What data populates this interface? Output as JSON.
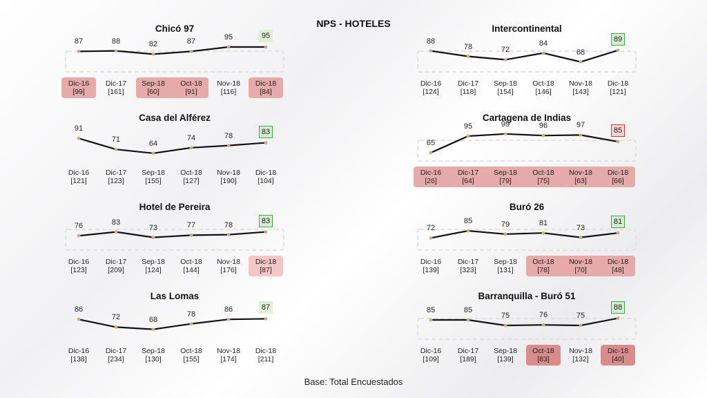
{
  "title": "NPS - HOTELES",
  "footer": "Base: Total Encuestados",
  "chart_data": [
    {
      "type": "line",
      "title": "Chicó 97",
      "categories": [
        "Dic-16",
        "Dic-17",
        "Sep-18",
        "Oct-18",
        "Nov-18",
        "Dic-18"
      ],
      "values": [
        87,
        88,
        82,
        87,
        95,
        95
      ],
      "bases": [
        "[99]",
        "[161]",
        "[60]",
        "[91]",
        "[116]",
        "[84]"
      ],
      "highlight": [
        "mid",
        "none",
        "mid",
        "mid",
        "none",
        "mid"
      ],
      "last_box": "lightgreen",
      "dashed_box": true
    },
    {
      "type": "line",
      "title": "Intercontinental",
      "categories": [
        "Dic-16",
        "Dic-17",
        "Sep-18",
        "Oct-18",
        "Nov-18",
        "Dic-18"
      ],
      "values": [
        88,
        78,
        72,
        84,
        68,
        89
      ],
      "bases": [
        "[124]",
        "[118]",
        "[154]",
        "[146]",
        "[143]",
        "[121]"
      ],
      "highlight": [
        "none",
        "none",
        "none",
        "none",
        "none",
        "none"
      ],
      "last_box": "green",
      "dashed_box": true
    },
    {
      "type": "line",
      "title": "Casa del Alférez",
      "categories": [
        "Dic-16",
        "Dic-17",
        "Sep-18",
        "Oct-18",
        "Nov-18",
        "Dic-18"
      ],
      "values": [
        91,
        71,
        64,
        74,
        78,
        83
      ],
      "bases": [
        "[121]",
        "[123]",
        "[155]",
        "[127]",
        "[190]",
        "[104]"
      ],
      "highlight": [
        "none",
        "none",
        "none",
        "none",
        "none",
        "none"
      ],
      "last_box": "green",
      "dashed_box": false
    },
    {
      "type": "line",
      "title": "Cartagena de Indias",
      "categories": [
        "Dic-16",
        "Dic-17",
        "Sep-18",
        "Oct-18",
        "Nov-18",
        "Dic-18"
      ],
      "values": [
        65,
        95,
        99,
        96,
        97,
        85
      ],
      "bases": [
        "[26]",
        "[64]",
        "[79]",
        "[75]",
        "[63]",
        "[66]"
      ],
      "highlight": [
        "mid",
        "mid",
        "mid",
        "mid",
        "mid",
        "mid"
      ],
      "last_box": "red",
      "dashed_box": true
    },
    {
      "type": "line",
      "title": "Hotel de Pereira",
      "categories": [
        "Dic-16",
        "Dic-17",
        "Sep-18",
        "Oct-18",
        "Nov-18",
        "Dic-18"
      ],
      "values": [
        76,
        83,
        73,
        77,
        78,
        83
      ],
      "bases": [
        "[123]",
        "[209]",
        "[124]",
        "[144]",
        "[176]",
        "[87]"
      ],
      "highlight": [
        "none",
        "none",
        "none",
        "none",
        "none",
        "light"
      ],
      "last_box": "green",
      "dashed_box": true
    },
    {
      "type": "line",
      "title": "Buró 26",
      "categories": [
        "Dic-16",
        "Dic-17",
        "Sep-18",
        "Oct-18",
        "Nov-18",
        "Dic-18"
      ],
      "values": [
        72,
        85,
        79,
        81,
        73,
        81
      ],
      "bases": [
        "[139]",
        "[323]",
        "[131]",
        "[78]",
        "[70]",
        "[48]"
      ],
      "highlight": [
        "none",
        "none",
        "none",
        "mid",
        "mid",
        "mid"
      ],
      "last_box": "green",
      "dashed_box": true
    },
    {
      "type": "line",
      "title": "Las Lomas",
      "categories": [
        "Dic-16",
        "Dic-17",
        "Sep-18",
        "Oct-18",
        "Nov-18",
        "Dic-18"
      ],
      "values": [
        86,
        72,
        68,
        78,
        86,
        87
      ],
      "bases": [
        "[138]",
        "[234]",
        "[130]",
        "[155]",
        "[174]",
        "[211]"
      ],
      "highlight": [
        "none",
        "none",
        "none",
        "none",
        "none",
        "none"
      ],
      "last_box": "lightgreen",
      "dashed_box": false
    },
    {
      "type": "line",
      "title": "Barranquilla - Buró 51",
      "categories": [
        "Dic-16",
        "Dic-17",
        "Sep-18",
        "Oct-18",
        "Nov-18",
        "Dic-18"
      ],
      "values": [
        85,
        85,
        75,
        76,
        75,
        88
      ],
      "bases": [
        "[109]",
        "[189]",
        "[139]",
        "[83]",
        "[132]",
        "[40]"
      ],
      "highlight": [
        "none",
        "none",
        "none",
        "dark",
        "none",
        "dark"
      ],
      "last_box": "green",
      "dashed_box": true
    }
  ]
}
